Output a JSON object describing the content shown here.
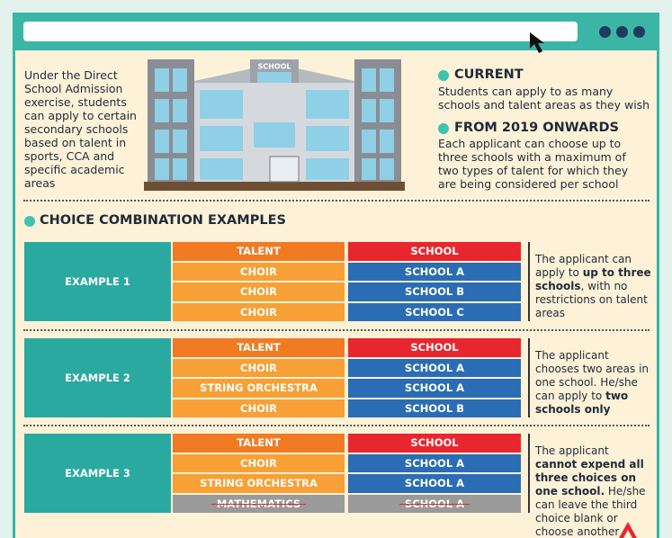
{
  "intro": "Under the Direct School Admission exercise, students can apply to certain secondary schools based on talent in sports, CCA and specific academic areas",
  "building_sign": "SCHOOL",
  "current": {
    "heading": "CURRENT",
    "text": "Students can apply to as many schools and talent areas as they wish"
  },
  "from_2019": {
    "heading": "FROM 2019 ONWARDS",
    "text": "Each applicant can choose up to three schools with a maximum of two types of talent for which they are being considered per school"
  },
  "section_title": "CHOICE COMBINATION EXAMPLES",
  "examples": [
    {
      "label": "EXAMPLE 1",
      "header": [
        "TALENT",
        "SCHOOL"
      ],
      "rows": [
        {
          "talent": "CHOIR",
          "school": "SCHOOL A",
          "crossed": false
        },
        {
          "talent": "CHOIR",
          "school": "SCHOOL B",
          "crossed": false
        },
        {
          "talent": "CHOIR",
          "school": "SCHOOL C",
          "crossed": false
        }
      ],
      "description": [
        {
          "text": "The applicant can apply to ",
          "bold": false
        },
        {
          "text": "up to three schools",
          "bold": true
        },
        {
          "text": ", with no restrictions on talent areas",
          "bold": false
        }
      ]
    },
    {
      "label": "EXAMPLE 2",
      "header": [
        "TALENT",
        "SCHOOL"
      ],
      "rows": [
        {
          "talent": "CHOIR",
          "school": "SCHOOL A",
          "crossed": false
        },
        {
          "talent": "STRING ORCHESTRA",
          "school": "SCHOOL A",
          "crossed": false
        },
        {
          "talent": "CHOIR",
          "school": "SCHOOL B",
          "crossed": false
        }
      ],
      "description": [
        {
          "text": "The applicant chooses two areas in one school. He/she can apply to ",
          "bold": false
        },
        {
          "text": "two schools only",
          "bold": true
        }
      ]
    },
    {
      "label": "EXAMPLE 3",
      "header": [
        "TALENT",
        "SCHOOL"
      ],
      "rows": [
        {
          "talent": "CHOIR",
          "school": "SCHOOL A",
          "crossed": false
        },
        {
          "talent": "STRING ORCHESTRA",
          "school": "SCHOOL A",
          "crossed": false
        },
        {
          "talent": "MATHEMATICS",
          "school": "SCHOOL A",
          "crossed": true
        }
      ],
      "description": [
        {
          "text": "The applicant ",
          "bold": false
        },
        {
          "text": "cannot expend all three choices on one school.",
          "bold": true
        },
        {
          "text": " He/she can leave the third choice blank or choose another school",
          "bold": false
        }
      ]
    }
  ]
}
